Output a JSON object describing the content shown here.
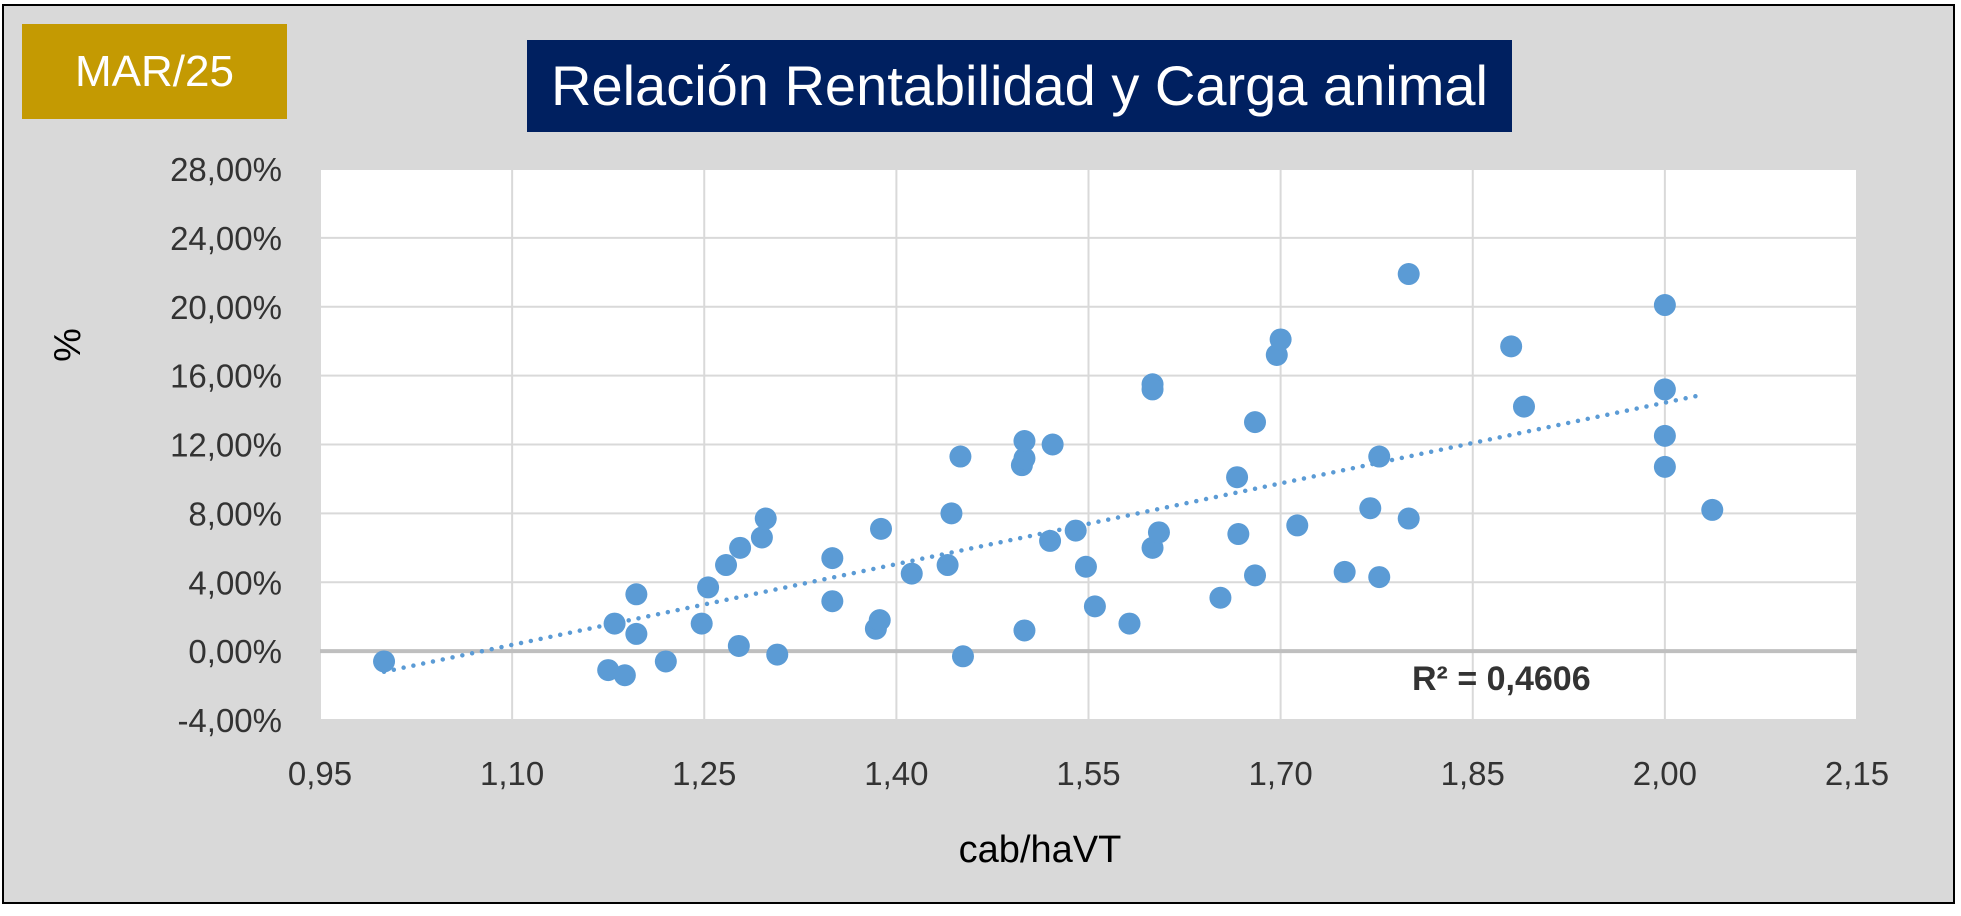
{
  "badge": {
    "label": "MAR/25"
  },
  "colors": {
    "background": "#d9d9d9",
    "badge": "#c49a02",
    "title_bg": "#002060",
    "points": "#5b9bd5",
    "trendline": "#5b9bd5"
  },
  "chart_data": {
    "type": "scatter",
    "title": "Relación Rentabilidad y Carga animal",
    "xlabel": "cab/haVT",
    "ylabel": "%",
    "xlim": [
      0.95,
      2.15
    ],
    "ylim": [
      -0.04,
      0.28
    ],
    "x_ticks": [
      "0,95",
      "1,10",
      "1,25",
      "1,40",
      "1,55",
      "1,70",
      "1,85",
      "2,00",
      "2,15"
    ],
    "y_ticks": [
      "-4,00%",
      "0,00%",
      "4,00%",
      "8,00%",
      "12,00%",
      "16,00%",
      "20,00%",
      "24,00%",
      "28,00%"
    ],
    "grid": true,
    "trendline": {
      "type": "linear",
      "x": [
        1.0,
        2.03
      ],
      "y": [
        -0.012,
        0.149
      ],
      "style": "dotted"
    },
    "r2_label": "R² = 0,4606",
    "points": [
      {
        "x": 1.0,
        "y": -0.006
      },
      {
        "x": 1.175,
        "y": -0.011
      },
      {
        "x": 1.18,
        "y": 0.016
      },
      {
        "x": 1.188,
        "y": -0.014
      },
      {
        "x": 1.197,
        "y": 0.033
      },
      {
        "x": 1.197,
        "y": 0.01
      },
      {
        "x": 1.22,
        "y": -0.006
      },
      {
        "x": 1.248,
        "y": 0.016
      },
      {
        "x": 1.253,
        "y": 0.037
      },
      {
        "x": 1.267,
        "y": 0.05
      },
      {
        "x": 1.278,
        "y": 0.06
      },
      {
        "x": 1.277,
        "y": 0.003
      },
      {
        "x": 1.295,
        "y": 0.066
      },
      {
        "x": 1.298,
        "y": 0.077
      },
      {
        "x": 1.307,
        "y": -0.002
      },
      {
        "x": 1.35,
        "y": 0.054
      },
      {
        "x": 1.35,
        "y": 0.029
      },
      {
        "x": 1.384,
        "y": 0.013
      },
      {
        "x": 1.387,
        "y": 0.018
      },
      {
        "x": 1.388,
        "y": 0.071
      },
      {
        "x": 1.412,
        "y": 0.045
      },
      {
        "x": 1.44,
        "y": 0.05
      },
      {
        "x": 1.443,
        "y": 0.08
      },
      {
        "x": 1.45,
        "y": 0.113
      },
      {
        "x": 1.452,
        "y": -0.003
      },
      {
        "x": 1.498,
        "y": 0.108
      },
      {
        "x": 1.5,
        "y": 0.112
      },
      {
        "x": 1.5,
        "y": 0.122
      },
      {
        "x": 1.5,
        "y": 0.012
      },
      {
        "x": 1.52,
        "y": 0.064
      },
      {
        "x": 1.522,
        "y": 0.12
      },
      {
        "x": 1.54,
        "y": 0.07
      },
      {
        "x": 1.548,
        "y": 0.049
      },
      {
        "x": 1.555,
        "y": 0.026
      },
      {
        "x": 1.582,
        "y": 0.016
      },
      {
        "x": 1.6,
        "y": 0.155
      },
      {
        "x": 1.6,
        "y": 0.152
      },
      {
        "x": 1.6,
        "y": 0.06
      },
      {
        "x": 1.605,
        "y": 0.069
      },
      {
        "x": 1.653,
        "y": 0.031
      },
      {
        "x": 1.666,
        "y": 0.101
      },
      {
        "x": 1.667,
        "y": 0.068
      },
      {
        "x": 1.68,
        "y": 0.133
      },
      {
        "x": 1.68,
        "y": 0.044
      },
      {
        "x": 1.697,
        "y": 0.172
      },
      {
        "x": 1.7,
        "y": 0.181
      },
      {
        "x": 1.713,
        "y": 0.073
      },
      {
        "x": 1.75,
        "y": 0.046
      },
      {
        "x": 1.77,
        "y": 0.083
      },
      {
        "x": 1.777,
        "y": 0.113
      },
      {
        "x": 1.777,
        "y": 0.043
      },
      {
        "x": 1.8,
        "y": 0.219
      },
      {
        "x": 1.8,
        "y": 0.077
      },
      {
        "x": 1.88,
        "y": 0.177
      },
      {
        "x": 1.89,
        "y": 0.142
      },
      {
        "x": 2.0,
        "y": 0.201
      },
      {
        "x": 2.0,
        "y": 0.152
      },
      {
        "x": 2.0,
        "y": 0.125
      },
      {
        "x": 2.0,
        "y": 0.107
      },
      {
        "x": 2.037,
        "y": 0.082
      }
    ]
  }
}
